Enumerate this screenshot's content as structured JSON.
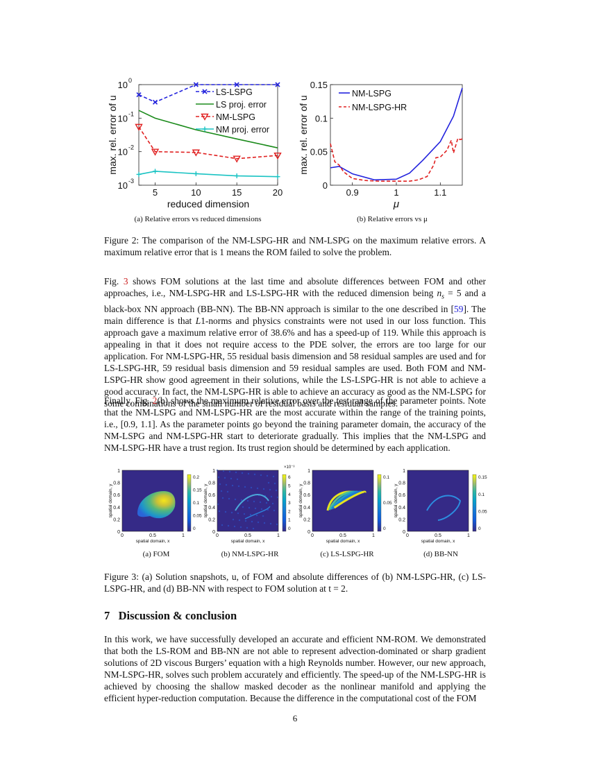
{
  "figure2": {
    "caption": "Figure 2: The comparison of the NM-LSPG-HR and NM-LSPG on the maximum relative errors. A maximum relative error that is 1 means the ROM failed to solve the problem.",
    "panel_a_caption": "(a)  Relative errors vs reduced dimensions",
    "panel_b_caption": "(b)  Relative errors vs μ"
  },
  "chart_data": [
    {
      "type": "line",
      "title": "",
      "xlabel": "reduced dimension",
      "ylabel": "max. rel. error of u",
      "yscale": "log",
      "xlim": [
        3,
        20
      ],
      "ylim": [
        0.001,
        1
      ],
      "xticks": [
        "5",
        "10",
        "15",
        "20"
      ],
      "yticks": [
        "10^0",
        "10^-1",
        "10^-2",
        "10^-3"
      ],
      "legend_position": "top-right",
      "series": [
        {
          "name": "LS-LSPG",
          "color": "#2222dd",
          "style": "dashed",
          "marker": "x",
          "x": [
            3,
            5,
            10,
            15,
            20
          ],
          "y": [
            0.5,
            0.3,
            1.0,
            1.0,
            1.0
          ]
        },
        {
          "name": "LS proj. error",
          "color": "#1a8a1a",
          "style": "solid",
          "marker": "none",
          "x": [
            3,
            5,
            10,
            15,
            20
          ],
          "y": [
            0.17,
            0.1,
            0.045,
            0.024,
            0.013
          ]
        },
        {
          "name": "NM-LSPG",
          "color": "#e02020",
          "style": "dashed",
          "marker": "triangle-down",
          "x": [
            3,
            5,
            10,
            15,
            20
          ],
          "y": [
            0.055,
            0.01,
            0.0095,
            0.0062,
            0.0077
          ]
        },
        {
          "name": "NM proj. error",
          "color": "#19c3c3",
          "style": "solid",
          "marker": "plus",
          "x": [
            3,
            5,
            10,
            15,
            20
          ],
          "y": [
            0.0021,
            0.0026,
            0.0022,
            0.0019,
            0.0018
          ]
        }
      ]
    },
    {
      "type": "line",
      "title": "",
      "xlabel": "μ",
      "ylabel": "max. rel. error of u",
      "xlim": [
        0.85,
        1.15
      ],
      "ylim": [
        0,
        0.15
      ],
      "xticks": [
        "0.9",
        "1",
        "1.1"
      ],
      "yticks": [
        "0",
        "0.05",
        "0.1",
        "0.15"
      ],
      "legend_position": "top-left",
      "series": [
        {
          "name": "NM-LSPG",
          "color": "#2222dd",
          "style": "solid",
          "x": [
            0.85,
            0.87,
            0.9,
            0.95,
            1.0,
            1.03,
            1.06,
            1.1,
            1.13,
            1.15
          ],
          "y": [
            0.026,
            0.028,
            0.017,
            0.008,
            0.009,
            0.018,
            0.037,
            0.065,
            0.103,
            0.145
          ]
        },
        {
          "name": "NM-LSPG-HR",
          "color": "#e02020",
          "style": "dashed",
          "x": [
            0.85,
            0.86,
            0.87,
            0.88,
            0.9,
            0.93,
            0.96,
            1.0,
            1.03,
            1.05,
            1.07,
            1.085,
            1.09,
            1.1,
            1.115,
            1.125,
            1.13,
            1.14,
            1.145,
            1.15
          ],
          "y": [
            0.062,
            0.035,
            0.03,
            0.02,
            0.01,
            0.007,
            0.006,
            0.006,
            0.006,
            0.008,
            0.013,
            0.03,
            0.041,
            0.042,
            0.052,
            0.067,
            0.048,
            0.07,
            0.068,
            0.069
          ]
        }
      ]
    }
  ],
  "para1": {
    "parts": [
      {
        "t": "Fig. ",
        "k": "n"
      },
      {
        "t": "3",
        "k": "f"
      },
      {
        "t": " shows FOM solutions at the last time and absolute differences between FOM and other approaches, i.e., NM-LSPG-HR and LS-LSPG-HR with the reduced dimension being ",
        "k": "n"
      },
      {
        "t": "n",
        "k": "i"
      },
      {
        "t": "s",
        "k": "sub"
      },
      {
        "t": " = 5 and a black-box NN approach (BB-NN). The BB-NN approach is similar to the one described in [",
        "k": "n"
      },
      {
        "t": "59",
        "k": "r"
      },
      {
        "t": "]. The main difference is that ",
        "k": "n"
      },
      {
        "t": "L",
        "k": "i"
      },
      {
        "t": "1-norms and physics constraints were not used in our loss function. This approach gave a maximum relative error of 38.6% and has a speed-up of 119. While this approach is appealing in that it does not require access to the PDE solver, the errors are too large for our application. For NM-LSPG-HR, 55 residual basis dimension and 58 residual samples are used and for LS-LSPG-HR, 59 residual basis dimension and 59 residual samples are used. Both FOM and NM-LSPG-HR show good agreement in their solutions, while the LS-LSPG-HR is not able to achieve a good accuracy. In fact, the NM-LSPG-HR is able to achieve an accuracy as good as the NM-LSPG for some combinations of the small number of residual basis and residual samples.",
        "k": "n"
      }
    ]
  },
  "para2": {
    "parts": [
      {
        "t": "Finally, Fig. ",
        "k": "n"
      },
      {
        "t": "2",
        "k": "f"
      },
      {
        "t": "(b) shows the maximum relative error over the test range of the parameter points. Note that the NM-LSPG and NM-LSPG-HR are the most accurate within the range of the training points, i.e., [0.9, 1.1]. As the parameter points go beyond the training parameter domain, the accuracy of the NM-LSPG and NM-LSPG-HR start to deteriorate gradually. This implies that the NM-LSPG and NM-LSPG-HR have a trust region. Its trust region should be determined by each application.",
        "k": "n"
      }
    ]
  },
  "figure3": {
    "panels": [
      {
        "caption": "(a)  FOM",
        "cbar_ticks": [
          "0.2",
          "0.15",
          "0.1",
          "0.05",
          "0"
        ],
        "cbar_exp": ""
      },
      {
        "caption": "(b)  NM-LSPG-HR",
        "cbar_ticks": [
          "6",
          "5",
          "4",
          "3",
          "2",
          "1",
          "0"
        ],
        "cbar_exp": "×10⁻³"
      },
      {
        "caption": "(c)  LS-LSPG-HR",
        "cbar_ticks": [
          "0.1",
          "0.05",
          "0"
        ],
        "cbar_exp": ""
      },
      {
        "caption": "(d)  BB-NN",
        "cbar_ticks": [
          "0.15",
          "0.1",
          "0.05",
          "0"
        ],
        "cbar_exp": ""
      }
    ],
    "axis_xlabel": "spatial domain, x",
    "axis_ylabel": "spatial domain, y",
    "x_ticks": [
      "0",
      "0.5",
      "1"
    ],
    "y_ticks": [
      "1",
      "0.8",
      "0.6",
      "0.4",
      "0.2",
      "0"
    ],
    "caption": "Figure 3: (a) Solution snapshots, u, of FOM and absolute differences of (b) NM-LSPG-HR, (c) LS-LSPG-HR, and (d) BB-NN with respect to FOM solution at t = 2."
  },
  "section": {
    "number": "7",
    "title": "Discussion & conclusion"
  },
  "para3": "In this work, we have successfully developed an accurate and efficient NM-ROM. We demonstrated that both the LS-ROM and BB-NN are not able to represent advection-dominated or sharp gradient solutions of 2D viscous Burgers’ equation with a high Reynolds number. However, our new approach, NM-LSPG-HR, solves such problem accurately and efficiently. The speed-up of the NM-LSPG-HR is achieved by choosing the shallow masked decoder as the nonlinear manifold and applying the efficient hyper-reduction computation. Because the difference in the computational cost of the FOM",
  "page_number": "6"
}
